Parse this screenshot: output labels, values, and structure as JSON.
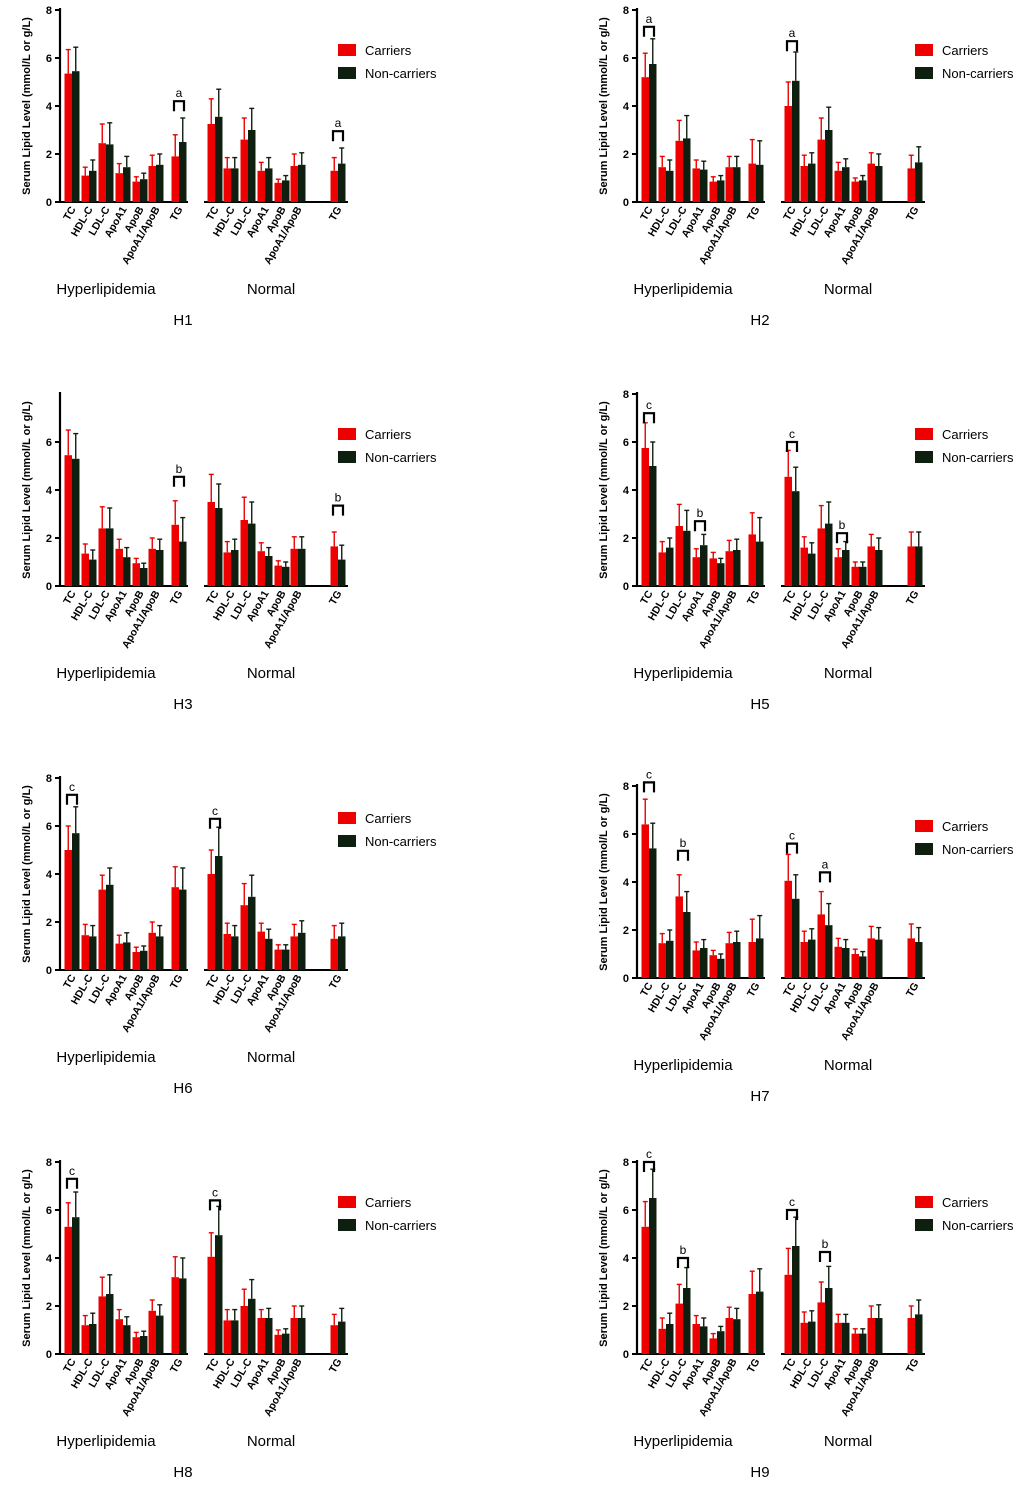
{
  "figure": {
    "legend": {
      "carriers": "Carriers",
      "non_carriers": "Non-carriers"
    },
    "colors": {
      "carriers": "#ee0000",
      "non_carriers": "#0f1f0f",
      "carriers_err": "#ee0000",
      "non_carriers_err": "#0f1f0f"
    }
  },
  "chart_data": [
    {
      "type": "bar",
      "panel": "H1",
      "ylabel": "Serum Lipid Level (mmol/L or g/L)",
      "ylim": [
        0,
        8
      ],
      "yticks": [
        0,
        2,
        4,
        6,
        8
      ],
      "groups": [
        "Hyperlipidemia",
        "Normal"
      ],
      "categories": [
        "TC",
        "HDL-C",
        "LDL-C",
        "ApoA1",
        "ApoB",
        "ApoA1/ApoB",
        "TG",
        "TC",
        "HDL-C",
        "LDL-C",
        "ApoA1",
        "ApoB",
        "ApoA1/ApoB",
        "TG"
      ],
      "series": [
        {
          "name": "Carriers",
          "values": [
            5.35,
            1.1,
            2.45,
            1.2,
            0.85,
            1.5,
            1.9,
            3.25,
            1.4,
            2.6,
            1.3,
            0.8,
            1.5,
            1.3
          ],
          "errors": [
            1.0,
            0.35,
            0.8,
            0.4,
            0.2,
            0.45,
            0.9,
            1.05,
            0.45,
            0.9,
            0.35,
            0.15,
            0.5,
            0.55
          ]
        },
        {
          "name": "Non-carriers",
          "values": [
            5.45,
            1.3,
            2.4,
            1.45,
            0.95,
            1.55,
            2.5,
            3.55,
            1.4,
            3.0,
            1.4,
            0.9,
            1.55,
            1.6
          ],
          "errors": [
            1.0,
            0.45,
            0.9,
            0.45,
            0.25,
            0.45,
            1.0,
            1.15,
            0.45,
            0.9,
            0.45,
            0.2,
            0.5,
            0.65
          ]
        }
      ],
      "annotations": [
        {
          "index": 6,
          "label": "a",
          "y": 4.2
        },
        {
          "index": 13,
          "label": "a",
          "y": 2.95
        }
      ]
    },
    {
      "type": "bar",
      "panel": "H2",
      "ylabel": "Serum Lipid Level (mmol/L or g/L)",
      "ylim": [
        0,
        8
      ],
      "yticks": [
        0,
        2,
        4,
        6,
        8
      ],
      "groups": [
        "Hyperlipidemia",
        "Normal"
      ],
      "categories": [
        "TC",
        "HDL-C",
        "LDL-C",
        "ApoA1",
        "ApoB",
        "ApoA1/ApoB",
        "TG",
        "TC",
        "HDL-C",
        "LDL-C",
        "ApoA1",
        "ApoB",
        "ApoA1/ApoB",
        "TG"
      ],
      "series": [
        {
          "name": "Carriers",
          "values": [
            5.2,
            1.45,
            2.55,
            1.4,
            0.85,
            1.45,
            1.6,
            4.0,
            1.5,
            2.6,
            1.3,
            0.85,
            1.6,
            1.4
          ],
          "errors": [
            1.0,
            0.45,
            0.85,
            0.35,
            0.2,
            0.45,
            1.0,
            1.0,
            0.45,
            0.9,
            0.35,
            0.15,
            0.45,
            0.55
          ]
        },
        {
          "name": "Non-carriers",
          "values": [
            5.75,
            1.3,
            2.65,
            1.35,
            0.9,
            1.45,
            1.55,
            5.05,
            1.6,
            3.0,
            1.45,
            0.9,
            1.5,
            1.65
          ],
          "errors": [
            1.05,
            0.45,
            0.95,
            0.35,
            0.2,
            0.45,
            1.0,
            1.2,
            0.45,
            0.95,
            0.35,
            0.2,
            0.5,
            0.65
          ]
        }
      ],
      "annotations": [
        {
          "index": 0,
          "label": "a",
          "y": 7.3
        },
        {
          "index": 7,
          "label": "a",
          "y": 6.7
        }
      ]
    },
    {
      "type": "bar",
      "panel": "H3",
      "ylabel": "Serum Lipid Level (mmol/L or g/L)",
      "ylim": [
        0,
        8
      ],
      "yticks": [
        0,
        2,
        4,
        6
      ],
      "groups": [
        "Hyperlipidemia",
        "Normal"
      ],
      "categories": [
        "TC",
        "HDL-C",
        "LDL-C",
        "ApoA1",
        "ApoB",
        "ApoA1/ApoB",
        "TG",
        "TC",
        "HDL-C",
        "LDL-C",
        "ApoA1",
        "ApoB",
        "ApoA1/ApoB",
        "TG"
      ],
      "series": [
        {
          "name": "Carriers",
          "values": [
            5.45,
            1.35,
            2.4,
            1.55,
            0.95,
            1.55,
            2.55,
            3.5,
            1.4,
            2.75,
            1.45,
            0.85,
            1.55,
            1.65
          ],
          "errors": [
            1.05,
            0.4,
            0.9,
            0.4,
            0.2,
            0.45,
            1.0,
            1.15,
            0.45,
            0.95,
            0.35,
            0.2,
            0.5,
            0.6
          ]
        },
        {
          "name": "Non-carriers",
          "values": [
            5.3,
            1.1,
            2.4,
            1.2,
            0.75,
            1.5,
            1.85,
            3.25,
            1.5,
            2.6,
            1.25,
            0.8,
            1.55,
            1.1
          ],
          "errors": [
            1.05,
            0.4,
            0.85,
            0.4,
            0.2,
            0.45,
            1.0,
            1.0,
            0.45,
            0.9,
            0.35,
            0.2,
            0.5,
            0.6
          ]
        }
      ],
      "annotations": [
        {
          "index": 6,
          "label": "b",
          "y": 4.55
        },
        {
          "index": 13,
          "label": "b",
          "y": 3.35
        }
      ]
    },
    {
      "type": "bar",
      "panel": "H5",
      "ylabel": "Serum Lipid Level (mmol/L or g/L)",
      "ylim": [
        0,
        8
      ],
      "yticks": [
        0,
        2,
        4,
        6,
        8
      ],
      "groups": [
        "Hyperlipidemia",
        "Normal"
      ],
      "categories": [
        "TC",
        "HDL-C",
        "LDL-C",
        "ApoA1",
        "ApoB",
        "ApoA1/ApoB",
        "TG",
        "TC",
        "HDL-C",
        "LDL-C",
        "ApoA1",
        "ApoB",
        "ApoA1/ApoB",
        "TG"
      ],
      "series": [
        {
          "name": "Carriers",
          "values": [
            5.75,
            1.4,
            2.5,
            1.2,
            1.15,
            1.45,
            2.15,
            4.55,
            1.6,
            2.4,
            1.2,
            0.8,
            1.65,
            1.65
          ],
          "errors": [
            1.05,
            0.45,
            0.9,
            0.35,
            0.25,
            0.45,
            0.9,
            1.1,
            0.45,
            0.95,
            0.35,
            0.2,
            0.5,
            0.6
          ]
        },
        {
          "name": "Non-carriers",
          "values": [
            5.0,
            1.6,
            2.3,
            1.7,
            0.95,
            1.5,
            1.85,
            3.95,
            1.35,
            2.6,
            1.5,
            0.8,
            1.5,
            1.65
          ],
          "errors": [
            1.0,
            0.4,
            0.85,
            0.45,
            0.2,
            0.45,
            1.0,
            1.0,
            0.45,
            0.9,
            0.35,
            0.2,
            0.5,
            0.6
          ]
        }
      ],
      "annotations": [
        {
          "index": 0,
          "label": "c",
          "y": 7.2
        },
        {
          "index": 3,
          "label": "b",
          "y": 2.7
        },
        {
          "index": 7,
          "label": "c",
          "y": 6.0
        },
        {
          "index": 10,
          "label": "b",
          "y": 2.2
        }
      ]
    },
    {
      "type": "bar",
      "panel": "H6",
      "ylabel": "Serum Lipid Level (mmol/L or g/L)",
      "ylim": [
        0,
        8
      ],
      "yticks": [
        0,
        2,
        4,
        6,
        8
      ],
      "groups": [
        "Hyperlipidemia",
        "Normal"
      ],
      "categories": [
        "TC",
        "HDL-C",
        "LDL-C",
        "ApoA1",
        "ApoB",
        "ApoA1/ApoB",
        "TG",
        "TC",
        "HDL-C",
        "LDL-C",
        "ApoA1",
        "ApoB",
        "ApoA1/ApoB",
        "TG"
      ],
      "series": [
        {
          "name": "Carriers",
          "values": [
            5.0,
            1.45,
            3.35,
            1.1,
            0.75,
            1.55,
            3.45,
            4.0,
            1.5,
            2.7,
            1.6,
            0.85,
            1.4,
            1.3
          ],
          "errors": [
            1.0,
            0.45,
            0.6,
            0.35,
            0.2,
            0.45,
            0.85,
            1.0,
            0.45,
            0.9,
            0.35,
            0.2,
            0.5,
            0.55
          ]
        },
        {
          "name": "Non-carriers",
          "values": [
            5.7,
            1.4,
            3.55,
            1.15,
            0.8,
            1.4,
            3.35,
            4.75,
            1.4,
            3.05,
            1.3,
            0.85,
            1.55,
            1.4
          ],
          "errors": [
            1.1,
            0.45,
            0.7,
            0.4,
            0.2,
            0.45,
            0.9,
            1.2,
            0.45,
            0.9,
            0.4,
            0.2,
            0.5,
            0.55
          ]
        }
      ],
      "annotations": [
        {
          "index": 0,
          "label": "c",
          "y": 7.3
        },
        {
          "index": 7,
          "label": "c",
          "y": 6.3
        }
      ]
    },
    {
      "type": "bar",
      "panel": "H7",
      "ylabel": "Serum Lipid Level (mmol/L or g/L)",
      "ylim": [
        0,
        8
      ],
      "yticks": [
        0,
        2,
        4,
        6,
        8
      ],
      "groups": [
        "Hyperlipidemia",
        "Normal"
      ],
      "categories": [
        "TC",
        "HDL-C",
        "LDL-C",
        "ApoA1",
        "ApoB",
        "ApoA1/ApoB",
        "TG",
        "TC",
        "HDL-C",
        "LDL-C",
        "ApoA1",
        "ApoB",
        "ApoA1/ApoB",
        "TG"
      ],
      "series": [
        {
          "name": "Carriers",
          "values": [
            6.4,
            1.45,
            3.4,
            1.15,
            0.95,
            1.45,
            1.5,
            4.05,
            1.5,
            2.65,
            1.3,
            1.0,
            1.65,
            1.65
          ],
          "errors": [
            1.05,
            0.4,
            0.9,
            0.35,
            0.2,
            0.45,
            0.95,
            1.1,
            0.45,
            0.95,
            0.35,
            0.2,
            0.5,
            0.6
          ]
        },
        {
          "name": "Non-carriers",
          "values": [
            5.4,
            1.55,
            2.75,
            1.25,
            0.8,
            1.5,
            1.65,
            3.3,
            1.6,
            2.2,
            1.25,
            0.9,
            1.6,
            1.5
          ],
          "errors": [
            1.05,
            0.45,
            0.85,
            0.35,
            0.2,
            0.45,
            0.95,
            1.0,
            0.45,
            0.9,
            0.35,
            0.2,
            0.5,
            0.6
          ]
        }
      ],
      "annotations": [
        {
          "index": 0,
          "label": "c",
          "y": 8.15
        },
        {
          "index": 2,
          "label": "b",
          "y": 5.3
        },
        {
          "index": 7,
          "label": "c",
          "y": 5.6
        },
        {
          "index": 9,
          "label": "a",
          "y": 4.4
        }
      ]
    },
    {
      "type": "bar",
      "panel": "H8",
      "ylabel": "Serum Lipid Level (mmol/L or g/L)",
      "ylim": [
        0,
        8
      ],
      "yticks": [
        0,
        2,
        4,
        6,
        8
      ],
      "groups": [
        "Hyperlipidemia",
        "Normal"
      ],
      "categories": [
        "TC",
        "HDL-C",
        "LDL-C",
        "ApoA1",
        "ApoB",
        "ApoA1/ApoB",
        "TG",
        "TC",
        "HDL-C",
        "LDL-C",
        "ApoA1",
        "ApoB",
        "ApoA1/ApoB",
        "TG"
      ],
      "series": [
        {
          "name": "Carriers",
          "values": [
            5.3,
            1.2,
            2.4,
            1.45,
            0.7,
            1.8,
            3.2,
            4.05,
            1.4,
            2.0,
            1.5,
            0.8,
            1.5,
            1.2
          ],
          "errors": [
            1.0,
            0.4,
            0.8,
            0.4,
            0.2,
            0.45,
            0.85,
            1.0,
            0.45,
            0.7,
            0.35,
            0.2,
            0.5,
            0.45
          ]
        },
        {
          "name": "Non-carriers",
          "values": [
            5.7,
            1.25,
            2.5,
            1.2,
            0.75,
            1.6,
            3.15,
            4.95,
            1.4,
            2.3,
            1.5,
            0.85,
            1.5,
            1.35
          ],
          "errors": [
            1.05,
            0.45,
            0.8,
            0.35,
            0.2,
            0.45,
            0.85,
            1.2,
            0.45,
            0.8,
            0.4,
            0.2,
            0.5,
            0.55
          ]
        }
      ],
      "annotations": [
        {
          "index": 0,
          "label": "c",
          "y": 7.3
        },
        {
          "index": 7,
          "label": "c",
          "y": 6.4
        }
      ]
    },
    {
      "type": "bar",
      "panel": "H9",
      "ylabel": "Serum Lipid Level (mmol/L or g/L)",
      "ylim": [
        0,
        8
      ],
      "yticks": [
        0,
        2,
        4,
        6,
        8
      ],
      "groups": [
        "Hyperlipidemia",
        "Normal"
      ],
      "categories": [
        "TC",
        "HDL-C",
        "LDL-C",
        "ApoA1",
        "ApoB",
        "ApoA1/ApoB",
        "TG",
        "TC",
        "HDL-C",
        "LDL-C",
        "ApoA1",
        "ApoB",
        "ApoA1/ApoB",
        "TG"
      ],
      "series": [
        {
          "name": "Carriers",
          "values": [
            5.3,
            1.05,
            2.1,
            1.25,
            0.65,
            1.5,
            2.5,
            3.3,
            1.3,
            2.15,
            1.3,
            0.85,
            1.5,
            1.5
          ],
          "errors": [
            1.05,
            0.45,
            0.8,
            0.35,
            0.2,
            0.45,
            0.95,
            1.1,
            0.45,
            0.85,
            0.35,
            0.2,
            0.5,
            0.5
          ]
        },
        {
          "name": "Non-carriers",
          "values": [
            6.5,
            1.25,
            2.75,
            1.15,
            0.95,
            1.45,
            2.6,
            4.5,
            1.35,
            2.75,
            1.3,
            0.85,
            1.5,
            1.65
          ],
          "errors": [
            1.2,
            0.45,
            0.85,
            0.35,
            0.2,
            0.45,
            0.95,
            1.2,
            0.45,
            0.9,
            0.35,
            0.2,
            0.55,
            0.6
          ]
        }
      ],
      "annotations": [
        {
          "index": 0,
          "label": "c",
          "y": 8.0
        },
        {
          "index": 2,
          "label": "b",
          "y": 4.0
        },
        {
          "index": 7,
          "label": "c",
          "y": 6.0
        },
        {
          "index": 9,
          "label": "b",
          "y": 4.25
        }
      ]
    }
  ]
}
